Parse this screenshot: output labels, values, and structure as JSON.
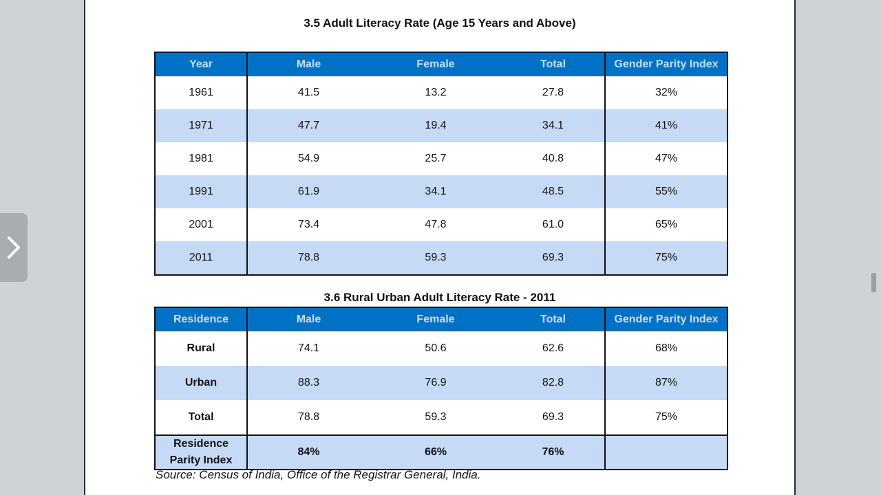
{
  "table1": {
    "title": "3.5  Adult Literacy Rate (Age 15 Years and Above)",
    "headers": [
      "Year",
      "Male",
      "Female",
      "Total",
      "Gender Parity Index"
    ],
    "rows": [
      [
        "1961",
        "41.5",
        "13.2",
        "27.8",
        "32%"
      ],
      [
        "1971",
        "47.7",
        "19.4",
        "34.1",
        "41%"
      ],
      [
        "1981",
        "54.9",
        "25.7",
        "40.8",
        "47%"
      ],
      [
        "1991",
        "61.9",
        "34.1",
        "48.5",
        "55%"
      ],
      [
        "2001",
        "73.4",
        "47.8",
        "61.0",
        "65%"
      ],
      [
        "2011",
        "78.8",
        "59.3",
        "69.3",
        "75%"
      ]
    ]
  },
  "table2": {
    "title": "3.6  Rural Urban Adult Literacy Rate - 2011",
    "headers": [
      "Residence",
      "Male",
      "Female",
      "Total",
      "Gender Parity Index"
    ],
    "rows": [
      [
        "Rural",
        "74.1",
        "50.6",
        "62.6",
        "68%"
      ],
      [
        "Urban",
        "88.3",
        "76.9",
        "82.8",
        "87%"
      ],
      [
        "Total",
        "78.8",
        "59.3",
        "69.3",
        "75%"
      ]
    ],
    "parity_row": {
      "label_line1": "Residence",
      "label_line2": "Parity Index",
      "male": "84%",
      "female": "66%",
      "total": "76%",
      "gpi": ""
    }
  },
  "source": "Source: Census of India, Office of the Registrar General, India.",
  "icons": {
    "side_tab": "chevron-right-icon",
    "scroll": "scroll-handle"
  },
  "colors": {
    "header_bg": "#0072c6",
    "header_text": "#c9ddf3",
    "alt_row": "#c6daf5",
    "viewer_bg": "#cfd3d6"
  }
}
